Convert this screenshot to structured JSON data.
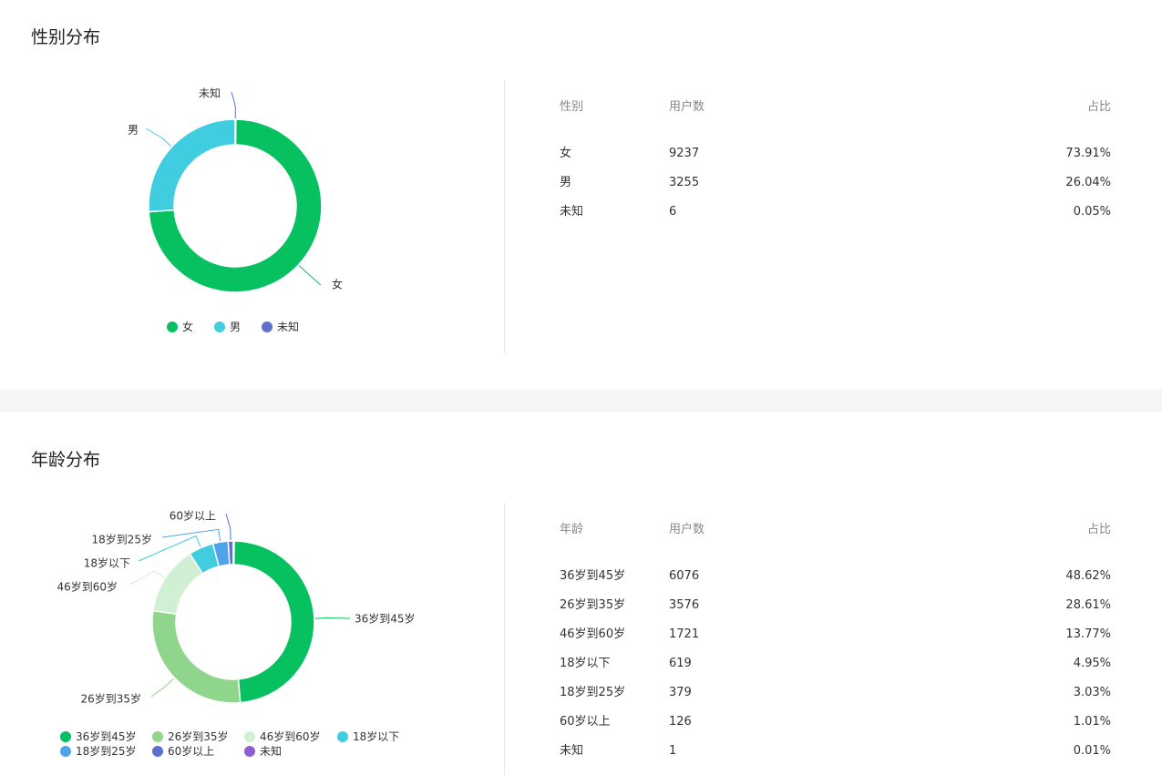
{
  "gender": {
    "title": "性别分布",
    "headers": [
      "性别",
      "用户数",
      "占比"
    ],
    "rows": [
      [
        "女",
        "9237",
        "73.91%"
      ],
      [
        "男",
        "3255",
        "26.04%"
      ],
      [
        "未知",
        "6",
        "0.05%"
      ]
    ],
    "chart_data": {
      "type": "pie",
      "donut": true,
      "categories": [
        "女",
        "男",
        "未知"
      ],
      "values": [
        9237,
        3255,
        6
      ],
      "colors": [
        "#07c160",
        "#40cde0",
        "#5f6fcf"
      ],
      "legend": "bottom"
    }
  },
  "age": {
    "title": "年龄分布",
    "headers": [
      "年龄",
      "用户数",
      "占比"
    ],
    "rows": [
      [
        "36岁到45岁",
        "6076",
        "48.62%"
      ],
      [
        "26岁到35岁",
        "3576",
        "28.61%"
      ],
      [
        "46岁到60岁",
        "1721",
        "13.77%"
      ],
      [
        "18岁以下",
        "619",
        "4.95%"
      ],
      [
        "18岁到25岁",
        "379",
        "3.03%"
      ],
      [
        "60岁以上",
        "126",
        "1.01%"
      ],
      [
        "未知",
        "1",
        "0.01%"
      ]
    ],
    "chart_data": {
      "type": "pie",
      "donut": true,
      "categories": [
        "36岁到45岁",
        "26岁到35岁",
        "46岁到60岁",
        "18岁以下",
        "18岁到25岁",
        "60岁以上",
        "未知"
      ],
      "values": [
        6076,
        3576,
        1721,
        619,
        379,
        126,
        1
      ],
      "colors": [
        "#07c160",
        "#8fd68c",
        "#d1efd3",
        "#40cde0",
        "#4fa3ec",
        "#5f6fcf",
        "#8d5fd3"
      ],
      "legend": "bottom-left"
    }
  }
}
